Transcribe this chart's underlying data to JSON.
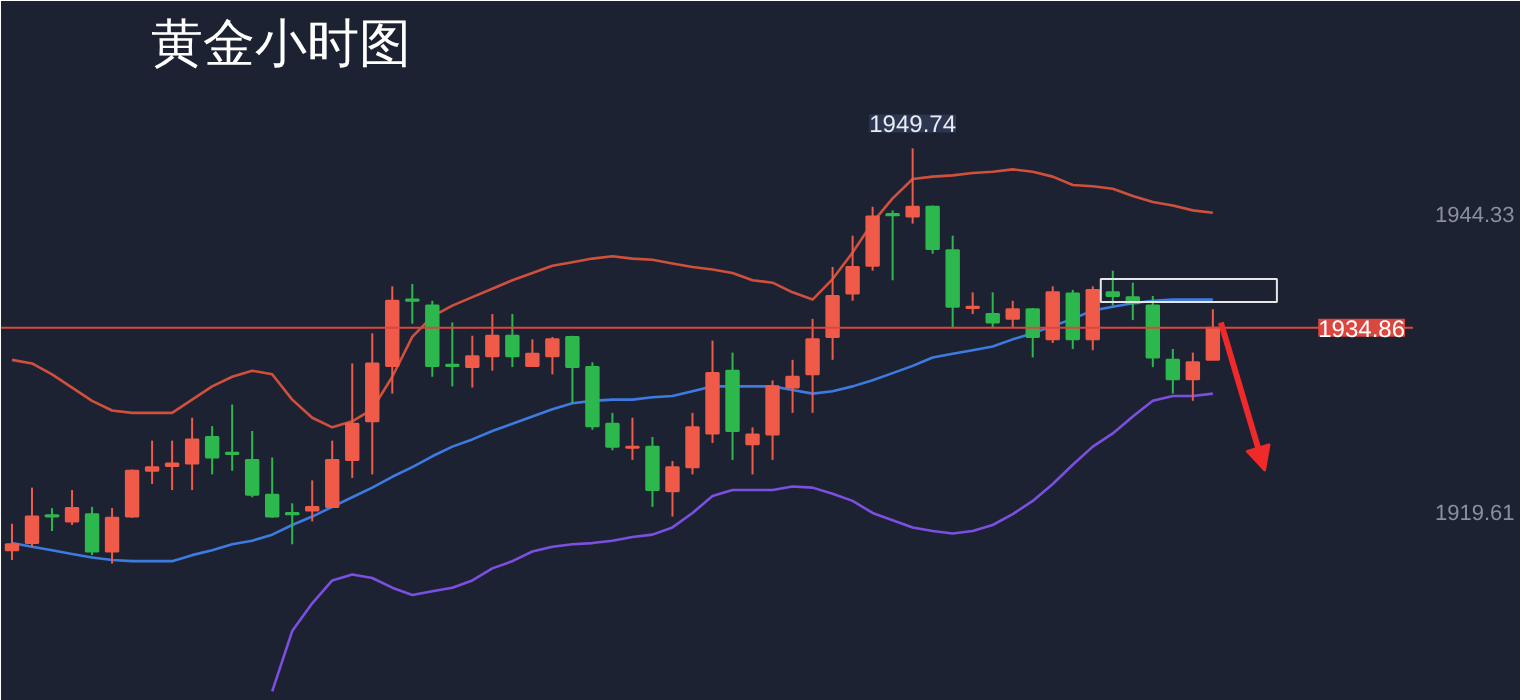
{
  "chart_data": {
    "type": "candlestick",
    "title": "黄金小时图",
    "categories": [
      null,
      null,
      null,
      null,
      null,
      null,
      null,
      null,
      null,
      null,
      null,
      null,
      null,
      null,
      null,
      null,
      null,
      null,
      null,
      null,
      null,
      null,
      null,
      null,
      null,
      null,
      null,
      null,
      null,
      null,
      null,
      null,
      null,
      null,
      null,
      null,
      null,
      null,
      null,
      null,
      null,
      null,
      null,
      null,
      null,
      null,
      null,
      null,
      null,
      null,
      null,
      null,
      null,
      null,
      null,
      null,
      null,
      null,
      null,
      null,
      null
    ],
    "ohlc": [
      [
        1916.4,
        1918.6,
        1915.6,
        1916.9
      ],
      [
        1917.0,
        1921.6,
        1916.7,
        1919.2
      ],
      [
        1919.3,
        1919.9,
        1918.0,
        1919.2
      ],
      [
        1918.8,
        1921.4,
        1918.5,
        1919.9
      ],
      [
        1919.4,
        1920.0,
        1916.0,
        1916.3
      ],
      [
        1916.3,
        1919.9,
        1915.3,
        1919.1
      ],
      [
        1919.2,
        1923.1,
        1919.1,
        1923.0
      ],
      [
        1923.0,
        1925.5,
        1921.9,
        1923.3
      ],
      [
        1923.4,
        1925.5,
        1921.4,
        1923.6
      ],
      [
        1923.6,
        1927.4,
        1921.4,
        1925.6
      ],
      [
        1925.8,
        1926.7,
        1922.7,
        1924.1
      ],
      [
        1924.5,
        1928.5,
        1923.0,
        1924.4
      ],
      [
        1923.9,
        1926.3,
        1920.8,
        1921.0
      ],
      [
        1921.0,
        1924.1,
        1919.1,
        1919.2
      ],
      [
        1919.5,
        1920.3,
        1916.9,
        1919.4
      ],
      [
        1919.7,
        1922.2,
        1918.8,
        1920.0
      ],
      [
        1920.0,
        1925.5,
        1919.9,
        1923.9
      ],
      [
        1923.9,
        1931.9,
        1922.4,
        1926.9
      ],
      [
        1927.1,
        1934.4,
        1922.7,
        1931.9
      ],
      [
        1931.7,
        1938.3,
        1929.4,
        1937.1
      ],
      [
        1937.2,
        1938.5,
        1935.2,
        1937.1
      ],
      [
        1936.7,
        1937.1,
        1930.8,
        1931.7
      ],
      [
        1931.8,
        1935.3,
        1930.0,
        1931.7
      ],
      [
        1931.6,
        1934.2,
        1929.9,
        1932.5
      ],
      [
        1932.5,
        1936.0,
        1931.3,
        1934.2
      ],
      [
        1934.2,
        1936.0,
        1931.6,
        1932.5
      ],
      [
        1931.7,
        1933.9,
        1931.6,
        1932.7
      ],
      [
        1932.5,
        1934.1,
        1931.0,
        1933.9
      ],
      [
        1934.1,
        1934.2,
        1928.6,
        1931.6
      ],
      [
        1931.6,
        1932.0,
        1926.4,
        1926.7
      ],
      [
        1926.9,
        1927.8,
        1924.7,
        1925.0
      ],
      [
        1924.9,
        1927.4,
        1923.9,
        1925.0
      ],
      [
        1925.0,
        1925.8,
        1920.0,
        1921.4
      ],
      [
        1921.3,
        1923.8,
        1919.2,
        1923.3
      ],
      [
        1923.3,
        1927.8,
        1922.7,
        1926.6
      ],
      [
        1926.1,
        1933.8,
        1925.3,
        1931.1
      ],
      [
        1931.3,
        1932.8,
        1923.9,
        1926.3
      ],
      [
        1925.2,
        1926.6,
        1922.7,
        1926.0
      ],
      [
        1926.0,
        1930.5,
        1923.9,
        1930.0
      ],
      [
        1929.9,
        1932.2,
        1927.8,
        1930.8
      ],
      [
        1931.0,
        1935.6,
        1927.8,
        1933.9
      ],
      [
        1934.1,
        1939.9,
        1932.2,
        1937.5
      ],
      [
        1937.7,
        1942.5,
        1937.1,
        1939.9
      ],
      [
        1940.0,
        1944.9,
        1939.6,
        1944.1
      ],
      [
        1944.3,
        1944.6,
        1938.8,
        1944.2
      ],
      [
        1944.1,
        1949.74,
        1943.5,
        1944.9
      ],
      [
        1944.9,
        1945.0,
        1941.0,
        1941.4
      ],
      [
        1941.3,
        1942.5,
        1934.9,
        1936.6
      ],
      [
        1936.5,
        1937.8,
        1936.0,
        1936.6
      ],
      [
        1936.0,
        1937.8,
        1934.9,
        1935.3
      ],
      [
        1935.6,
        1937.1,
        1934.9,
        1936.4
      ],
      [
        1936.4,
        1936.5,
        1932.4,
        1934.1
      ],
      [
        1933.9,
        1938.3,
        1933.6,
        1937.8
      ],
      [
        1937.7,
        1938.0,
        1933.1,
        1933.9
      ],
      [
        1933.9,
        1938.3,
        1933.0,
        1938.0
      ],
      [
        1937.8,
        1939.6,
        1936.7,
        1937.5
      ],
      [
        1937.4,
        1938.6,
        1935.5,
        1936.9
      ],
      [
        1936.7,
        1937.5,
        1931.6,
        1932.4
      ],
      [
        1932.2,
        1933.1,
        1929.4,
        1930.6
      ],
      [
        1930.6,
        1932.8,
        1928.8,
        1932.0
      ],
      [
        1932.2,
        1936.4,
        1932.2,
        1934.86
      ]
    ],
    "colors": [
      "#f05a48",
      "#f05a48",
      "#2db84d",
      "#f05a48",
      "#2db84d",
      "#f05a48",
      "#f05a48",
      "#f05a48",
      "#f05a48",
      "#f05a48",
      "#2db84d",
      "#2db84d",
      "#2db84d",
      "#2db84d",
      "#2db84d",
      "#f05a48",
      "#f05a48",
      "#f05a48",
      "#f05a48",
      "#f05a48",
      "#2db84d",
      "#2db84d",
      "#2db84d",
      "#f05a48",
      "#f05a48",
      "#2db84d",
      "#f05a48",
      "#f05a48",
      "#2db84d",
      "#2db84d",
      "#2db84d",
      "#f05a48",
      "#2db84d",
      "#f05a48",
      "#f05a48",
      "#f05a48",
      "#2db84d",
      "#f05a48",
      "#f05a48",
      "#f05a48",
      "#f05a48",
      "#f05a48",
      "#f05a48",
      "#f05a48",
      "#2db84d",
      "#f05a48",
      "#2db84d",
      "#2db84d",
      "#f05a48",
      "#2db84d",
      "#f05a48",
      "#2db84d",
      "#f05a48",
      "#2db84d",
      "#f05a48",
      "#2db84d",
      "#2db84d",
      "#2db84d",
      "#2db84d",
      "#f05a48",
      "#f05a48"
    ],
    "series": [
      {
        "type": "line",
        "color": "#d0503c",
        "values": [
          1932.2,
          1931.9,
          1931.0,
          1929.9,
          1928.8,
          1928.0,
          1927.8,
          1927.8,
          1927.8,
          1928.9,
          1930.0,
          1930.8,
          1931.3,
          1931.0,
          1928.9,
          1927.4,
          1926.6,
          1927.1,
          1928.1,
          1930.8,
          1934.1,
          1935.8,
          1936.7,
          1937.4,
          1938.1,
          1938.8,
          1939.4,
          1940.0,
          1940.3,
          1940.6,
          1940.8,
          1940.6,
          1940.5,
          1940.2,
          1939.9,
          1939.7,
          1939.4,
          1938.8,
          1938.6,
          1937.8,
          1937.2,
          1938.9,
          1941.1,
          1943.6,
          1945.6,
          1947.2,
          1947.4,
          1947.5,
          1947.7,
          1947.8,
          1948.0,
          1947.8,
          1947.4,
          1946.7,
          1946.6,
          1946.4,
          1945.8,
          1945.3,
          1945.0,
          1944.6,
          1944.4
        ]
      },
      {
        "type": "line",
        "color": "#3d7be0",
        "values": [
          1917.0,
          1916.7,
          1916.4,
          1916.1,
          1915.8,
          1915.6,
          1915.5,
          1915.5,
          1915.5,
          1916.0,
          1916.4,
          1916.9,
          1917.2,
          1917.7,
          1918.5,
          1919.2,
          1920.0,
          1920.8,
          1921.6,
          1922.5,
          1923.3,
          1924.2,
          1925.0,
          1925.6,
          1926.3,
          1926.9,
          1927.5,
          1928.1,
          1928.6,
          1928.8,
          1928.9,
          1928.9,
          1929.1,
          1929.2,
          1929.6,
          1930.0,
          1930.0,
          1930.0,
          1930.0,
          1929.7,
          1929.4,
          1929.6,
          1930.0,
          1930.5,
          1931.1,
          1931.7,
          1932.4,
          1932.7,
          1933.0,
          1933.3,
          1933.9,
          1934.4,
          1935.0,
          1935.6,
          1936.3,
          1936.6,
          1936.9,
          1937.1,
          1937.2,
          1937.2,
          1937.2
        ]
      },
      {
        "type": "line",
        "color": "#7b4fe0",
        "values": [
          null,
          null,
          null,
          null,
          null,
          null,
          null,
          null,
          null,
          null,
          null,
          null,
          null,
          1904.7,
          1909.7,
          1912.0,
          1913.9,
          1914.4,
          1914.1,
          1913.3,
          1912.7,
          1913.0,
          1913.3,
          1913.9,
          1914.9,
          1915.5,
          1916.3,
          1916.7,
          1916.9,
          1917.0,
          1917.2,
          1917.5,
          1917.7,
          1918.3,
          1919.5,
          1920.9,
          1921.4,
          1921.4,
          1921.4,
          1921.7,
          1921.6,
          1921.1,
          1920.5,
          1919.5,
          1918.9,
          1918.3,
          1918.0,
          1917.8,
          1918.0,
          1918.5,
          1919.4,
          1920.5,
          1921.9,
          1923.5,
          1925.0,
          1926.1,
          1927.5,
          1928.8,
          1929.2,
          1929.2,
          1929.4
        ]
      }
    ],
    "ylim": [
      1903.9,
      1955.0
    ],
    "yticks": [
      1944.33,
      1919.61
    ],
    "tick_labels": "y",
    "ref_lines": [
      {
        "axis": "y",
        "value": 1934.86,
        "label": "1934.86",
        "color": "#d9473f"
      }
    ],
    "annotations": [
      {
        "text": "1949.74",
        "y": 1949.74
      }
    ]
  }
}
